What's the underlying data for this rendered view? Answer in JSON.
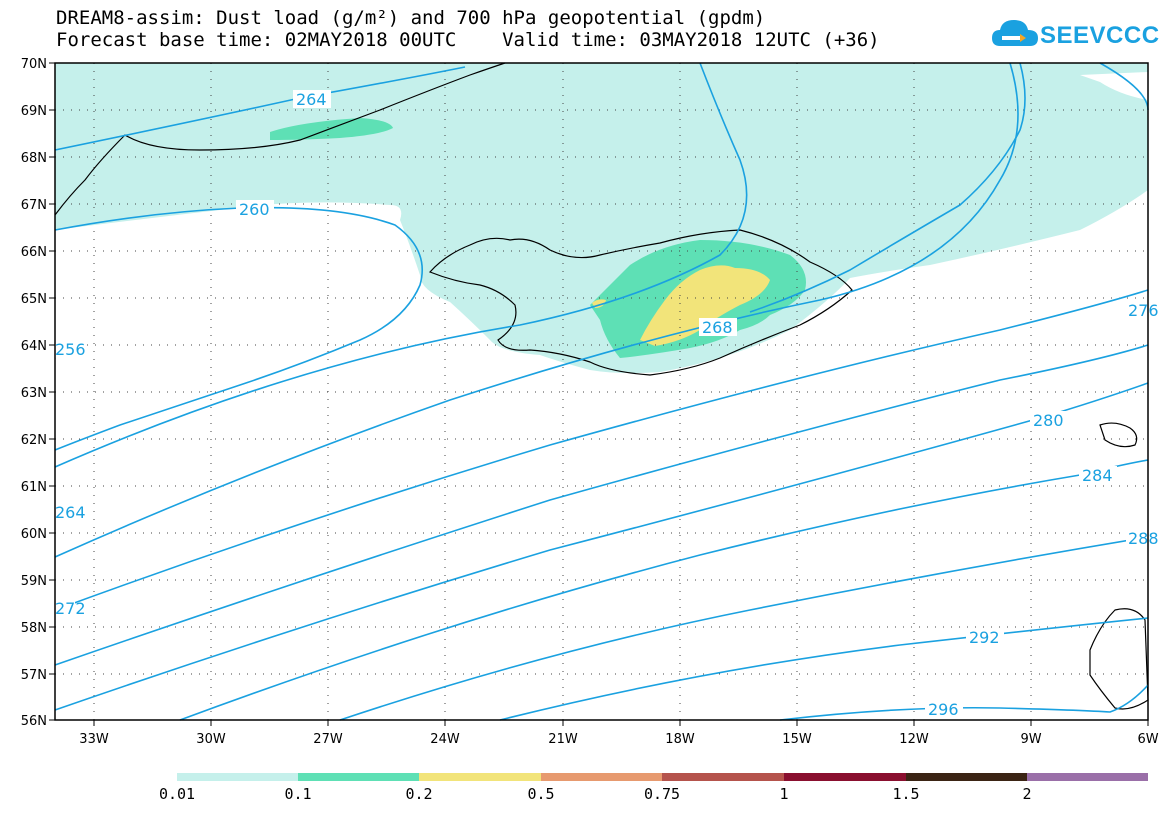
{
  "header": {
    "title_line1": "DREAM8-assim: Dust load (g/m²) and 700 hPa geopotential (gpdm)",
    "title_line2": "Forecast base time: 02MAY2018 00UTC    Valid time: 03MAY2018 12UTC (+36)",
    "logo_text": "SEEVCCC"
  },
  "map": {
    "lat_labels": [
      "70N",
      "69N",
      "68N",
      "67N",
      "66N",
      "65N",
      "64N",
      "63N",
      "62N",
      "61N",
      "60N",
      "59N",
      "58N",
      "57N",
      "56N"
    ],
    "lon_labels": [
      "33W",
      "30W",
      "27W",
      "24W",
      "21W",
      "18W",
      "15W",
      "12W",
      "9W",
      "6W"
    ],
    "contour_labels": [
      "264",
      "260",
      "268",
      "276",
      "280",
      "284",
      "288",
      "292",
      "296",
      "256",
      "264",
      "272"
    ],
    "dust_colors": {
      "low": "#c5f0eb",
      "mid": "#5ee0b5",
      "high": "#f2e47a"
    },
    "contour_color": "#1aa1e0"
  },
  "colorbar": {
    "labels": [
      "0.01",
      "0.1",
      "0.2",
      "0.5",
      "0.75",
      "1",
      "1.5",
      "2"
    ],
    "colors": [
      "#c5f0eb",
      "#5ee0b5",
      "#f2e47a",
      "#e79a6f",
      "#b5534c",
      "#8a0f2f",
      "#3b2414",
      "#9a6fa8"
    ]
  }
}
